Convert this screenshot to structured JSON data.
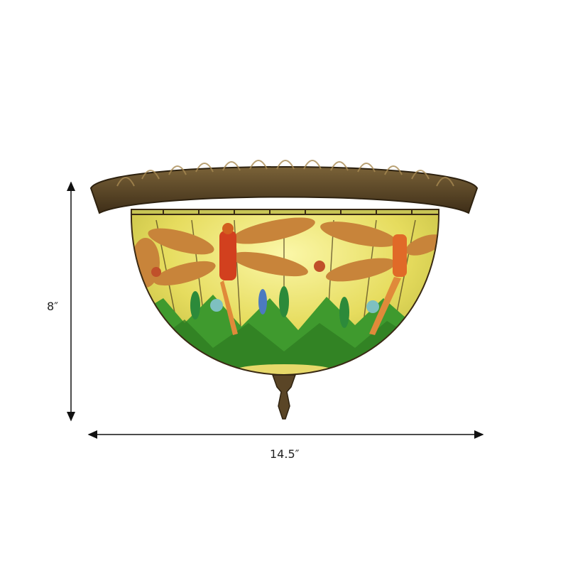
{
  "product": {
    "dimensions": {
      "height_label": "8″",
      "width_label": "14.5″"
    },
    "colors": {
      "canopy": "#5a4526",
      "glass_yellow": "#e8e06a",
      "glass_green": "#3f9a2e",
      "dragonfly_wing": "#c8843a",
      "dragonfly_body": "#d2401e"
    }
  }
}
